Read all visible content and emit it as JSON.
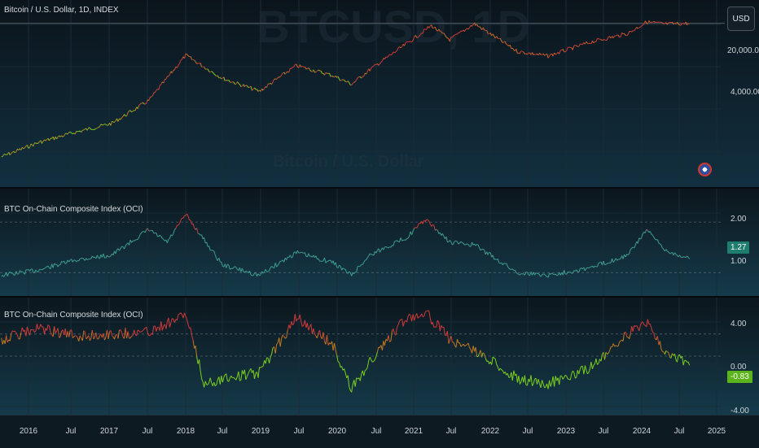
{
  "header": {
    "usd_button": "USD"
  },
  "panes": {
    "price": {
      "title": "Bitcoin / U.S. Dollar, 1D, INDEX",
      "watermark_symbol": "BTCUSD, 1D",
      "watermark_name": "Bitcoin / U.S. Dollar",
      "y_labels": [
        "20,000.00",
        "4,000.00"
      ]
    },
    "oci1": {
      "title": "BTC On-Chain Composite Index (OCI)",
      "y_labels": [
        "2.00",
        "1.00"
      ],
      "last_value": "1.27"
    },
    "oci2": {
      "title": "BTC On-Chain Composite Index (OCI)",
      "y_labels": [
        "4.00",
        "0.00",
        "-4.00"
      ],
      "last_value": "-0.83"
    }
  },
  "x_axis": {
    "labels": [
      "2016",
      "Jul",
      "2017",
      "Jul",
      "2018",
      "Jul",
      "2019",
      "Jul",
      "2020",
      "Jul",
      "2021",
      "Jul",
      "2022",
      "Jul",
      "2023",
      "Jul",
      "2024",
      "Jul",
      "2025"
    ]
  },
  "colors": {
    "bg": "#0e1a22",
    "hot": "#d13a3a",
    "warm": "#c27a1f",
    "cool": "#7ccf1e",
    "teal": "#3f9e91",
    "tag_teal": "#1f7d70",
    "tag_green": "#5bb51a"
  },
  "chart_data": [
    {
      "type": "line",
      "title": "Bitcoin / U.S. Dollar, 1D, INDEX",
      "y_scale": "log",
      "ylabel": "USD",
      "x": [
        "2015-06",
        "2015-12",
        "2016-06",
        "2016-12",
        "2017-06",
        "2017-12",
        "2018-06",
        "2018-12",
        "2019-06",
        "2019-12",
        "2020-03",
        "2020-06",
        "2020-12",
        "2021-04",
        "2021-07",
        "2021-11",
        "2022-06",
        "2022-11",
        "2023-06",
        "2023-12",
        "2024-03",
        "2024-06",
        "2024-10"
      ],
      "series": [
        {
          "values": [
            230,
            420,
            650,
            950,
            2500,
            17000,
            6400,
            3700,
            11000,
            7200,
            5000,
            9300,
            28000,
            60000,
            33000,
            65000,
            20000,
            16500,
            30000,
            43000,
            70000,
            64000,
            66000
          ]
        }
      ],
      "y_ticks": [
        20000,
        4000
      ]
    },
    {
      "type": "line",
      "title": "BTC On-Chain Composite Index (OCI)",
      "ylim": [
        0.7,
        2.5
      ],
      "x": [
        "2015-06",
        "2015-12",
        "2016-06",
        "2016-12",
        "2017-06",
        "2017-09",
        "2017-12",
        "2018-06",
        "2018-12",
        "2019-06",
        "2019-12",
        "2020-03",
        "2020-06",
        "2020-12",
        "2021-03",
        "2021-07",
        "2021-11",
        "2022-06",
        "2022-11",
        "2023-06",
        "2023-12",
        "2024-03",
        "2024-06",
        "2024-10"
      ],
      "series": [
        {
          "values": [
            0.95,
            1.05,
            1.25,
            1.35,
            1.85,
            1.6,
            2.15,
            1.15,
            0.95,
            1.4,
            1.2,
            0.95,
            1.35,
            1.7,
            2.05,
            1.6,
            1.55,
            1.0,
            0.95,
            1.1,
            1.35,
            1.85,
            1.45,
            1.27
          ]
        }
      ],
      "y_ticks": [
        2.0,
        1.0
      ],
      "last_value": 1.27
    },
    {
      "type": "line",
      "title": "BTC On-Chain Composite Index (OCI)",
      "ylim": [
        -5,
        5
      ],
      "x": [
        "2015-06",
        "2015-12",
        "2016-06",
        "2016-12",
        "2017-06",
        "2017-12",
        "2018-03",
        "2018-06",
        "2018-12",
        "2019-06",
        "2019-12",
        "2020-03",
        "2020-06",
        "2020-12",
        "2021-03",
        "2021-07",
        "2021-11",
        "2022-06",
        "2022-11",
        "2023-06",
        "2023-12",
        "2024-03",
        "2024-06",
        "2024-10"
      ],
      "series": [
        {
          "values": [
            1.5,
            2.5,
            1.8,
            2.0,
            2.2,
            3.8,
            -2.5,
            -2.0,
            -1.5,
            3.5,
            1.0,
            -3.0,
            -0.5,
            3.5,
            4.0,
            1.5,
            0.5,
            -2.0,
            -2.5,
            -1.0,
            2.0,
            3.0,
            0.5,
            -0.83
          ]
        }
      ],
      "y_ticks": [
        4.0,
        0.0,
        -4.0
      ],
      "last_value": -0.83
    }
  ]
}
